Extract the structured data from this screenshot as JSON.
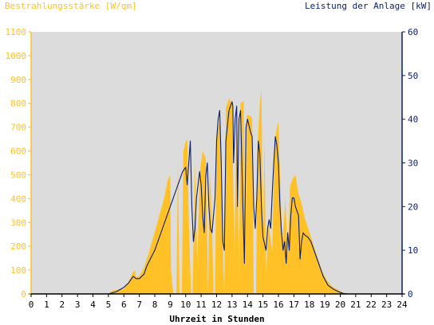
{
  "chart_data": {
    "type": "area",
    "left_axis_label": "Bestrahlungsstärke [W/qm]",
    "right_axis_label": "Leistung der Anlage [kW]",
    "xlabel": "Uhrzeit in Stunden",
    "x_ticks": [
      "0",
      "1",
      "2",
      "3",
      "4",
      "5",
      "6",
      "7",
      "8",
      "9",
      "10",
      "11",
      "12",
      "13",
      "14",
      "15",
      "16",
      "17",
      "18",
      "19",
      "20",
      "21",
      "22",
      "23",
      "24"
    ],
    "y_left_ticks": [
      "0",
      "100",
      "200",
      "300",
      "400",
      "500",
      "600",
      "700",
      "800",
      "900",
      "1000",
      "1100"
    ],
    "y_right_ticks": [
      "0",
      "10",
      "20",
      "30",
      "40",
      "50",
      "60"
    ],
    "x_range": [
      0,
      24
    ],
    "y_left_range": [
      0,
      1100
    ],
    "y_right_range": [
      0,
      60
    ],
    "grid": false,
    "colors": {
      "irradiance": "#ffc125",
      "power": "#0a1f6e",
      "left_axis": "#ffc125",
      "right_axis": "#0a1f6e",
      "plot_background": "#dcdcdc"
    },
    "series": [
      {
        "name": "Bestrahlungsstärke [W/qm]",
        "axis": "left",
        "points": [
          [
            0,
            0
          ],
          [
            5.0,
            0
          ],
          [
            5.3,
            15
          ],
          [
            6.0,
            20
          ],
          [
            6.3,
            50
          ],
          [
            6.5,
            80
          ],
          [
            6.7,
            100
          ],
          [
            6.8,
            70
          ],
          [
            7.0,
            75
          ],
          [
            7.3,
            110
          ],
          [
            7.6,
            170
          ],
          [
            8.0,
            260
          ],
          [
            8.3,
            330
          ],
          [
            8.6,
            400
          ],
          [
            8.85,
            480
          ],
          [
            9.0,
            500
          ],
          [
            9.05,
            100
          ],
          [
            9.2,
            0
          ],
          [
            9.4,
            0
          ],
          [
            9.5,
            560
          ],
          [
            9.6,
            0
          ],
          [
            9.75,
            0
          ],
          [
            9.85,
            600
          ],
          [
            10.0,
            640
          ],
          [
            10.1,
            650
          ],
          [
            10.2,
            300
          ],
          [
            10.35,
            0
          ],
          [
            10.45,
            0
          ],
          [
            10.6,
            550
          ],
          [
            10.75,
            120
          ],
          [
            10.9,
            500
          ],
          [
            11.1,
            600
          ],
          [
            11.3,
            570
          ],
          [
            11.45,
            0
          ],
          [
            11.55,
            520
          ],
          [
            11.7,
            300
          ],
          [
            11.8,
            0
          ],
          [
            11.9,
            0
          ],
          [
            12.0,
            680
          ],
          [
            12.2,
            720
          ],
          [
            12.35,
            300
          ],
          [
            12.5,
            0
          ],
          [
            12.6,
            780
          ],
          [
            12.8,
            820
          ],
          [
            13.0,
            800
          ],
          [
            13.15,
            150
          ],
          [
            13.3,
            780
          ],
          [
            13.45,
            50
          ],
          [
            13.55,
            800
          ],
          [
            13.75,
            810
          ],
          [
            13.85,
            100
          ],
          [
            13.95,
            750
          ],
          [
            14.1,
            750
          ],
          [
            14.3,
            740
          ],
          [
            14.4,
            0
          ],
          [
            14.55,
            0
          ],
          [
            14.65,
            620
          ],
          [
            14.8,
            800
          ],
          [
            14.9,
            860
          ],
          [
            15.0,
            200
          ],
          [
            15.1,
            650
          ],
          [
            15.2,
            60
          ],
          [
            15.35,
            300
          ],
          [
            15.6,
            180
          ],
          [
            15.75,
            620
          ],
          [
            15.9,
            700
          ],
          [
            16.0,
            720
          ],
          [
            16.1,
            500
          ],
          [
            16.25,
            200
          ],
          [
            16.45,
            400
          ],
          [
            16.6,
            150
          ],
          [
            16.75,
            450
          ],
          [
            16.9,
            480
          ],
          [
            17.1,
            500
          ],
          [
            17.3,
            420
          ],
          [
            17.5,
            380
          ],
          [
            17.7,
            320
          ],
          [
            17.9,
            280
          ],
          [
            18.2,
            220
          ],
          [
            18.5,
            160
          ],
          [
            18.8,
            100
          ],
          [
            19.1,
            60
          ],
          [
            19.5,
            30
          ],
          [
            19.9,
            15
          ],
          [
            20.2,
            5
          ],
          [
            20.5,
            0
          ],
          [
            24,
            0
          ]
        ]
      },
      {
        "name": "Leistung der Anlage [kW]",
        "axis": "right",
        "points": [
          [
            0,
            0
          ],
          [
            5.0,
            0
          ],
          [
            5.5,
            0.5
          ],
          [
            6.0,
            1.5
          ],
          [
            6.3,
            2.5
          ],
          [
            6.6,
            4.0
          ],
          [
            6.8,
            3.5
          ],
          [
            7.0,
            3.5
          ],
          [
            7.3,
            4.5
          ],
          [
            7.5,
            6.5
          ],
          [
            8.0,
            10
          ],
          [
            8.5,
            15
          ],
          [
            9.0,
            20
          ],
          [
            9.3,
            23
          ],
          [
            9.6,
            26
          ],
          [
            9.8,
            28
          ],
          [
            10.0,
            29
          ],
          [
            10.1,
            25
          ],
          [
            10.2,
            30
          ],
          [
            10.3,
            35
          ],
          [
            10.4,
            20
          ],
          [
            10.5,
            12
          ],
          [
            10.6,
            15
          ],
          [
            10.7,
            22
          ],
          [
            10.9,
            28
          ],
          [
            11.0,
            25
          ],
          [
            11.1,
            18
          ],
          [
            11.2,
            14
          ],
          [
            11.3,
            27
          ],
          [
            11.4,
            30
          ],
          [
            11.5,
            20
          ],
          [
            11.6,
            15
          ],
          [
            11.7,
            14
          ],
          [
            11.8,
            18
          ],
          [
            11.9,
            22
          ],
          [
            12.0,
            35
          ],
          [
            12.1,
            40
          ],
          [
            12.2,
            42
          ],
          [
            12.3,
            30
          ],
          [
            12.4,
            12
          ],
          [
            12.5,
            10
          ],
          [
            12.6,
            35
          ],
          [
            12.8,
            42
          ],
          [
            13.0,
            44
          ],
          [
            13.05,
            43
          ],
          [
            13.1,
            30
          ],
          [
            13.2,
            40
          ],
          [
            13.3,
            43
          ],
          [
            13.35,
            20
          ],
          [
            13.45,
            40
          ],
          [
            13.55,
            42
          ],
          [
            13.7,
            20
          ],
          [
            13.8,
            7
          ],
          [
            13.9,
            38
          ],
          [
            14.0,
            40
          ],
          [
            14.2,
            37
          ],
          [
            14.3,
            36
          ],
          [
            14.4,
            20
          ],
          [
            14.5,
            15
          ],
          [
            14.6,
            22
          ],
          [
            14.7,
            35
          ],
          [
            14.8,
            32
          ],
          [
            14.9,
            20
          ],
          [
            15.0,
            13
          ],
          [
            15.2,
            10
          ],
          [
            15.3,
            15
          ],
          [
            15.4,
            17
          ],
          [
            15.5,
            15
          ],
          [
            15.6,
            23
          ],
          [
            15.7,
            30
          ],
          [
            15.8,
            36
          ],
          [
            15.9,
            34
          ],
          [
            16.0,
            30
          ],
          [
            16.1,
            20
          ],
          [
            16.2,
            14
          ],
          [
            16.3,
            10
          ],
          [
            16.4,
            12
          ],
          [
            16.5,
            7
          ],
          [
            16.6,
            14
          ],
          [
            16.7,
            10
          ],
          [
            16.8,
            18
          ],
          [
            16.9,
            22
          ],
          [
            17.0,
            22
          ],
          [
            17.1,
            20
          ],
          [
            17.3,
            18
          ],
          [
            17.4,
            8
          ],
          [
            17.5,
            12
          ],
          [
            17.6,
            14
          ],
          [
            17.7,
            13.5
          ],
          [
            17.9,
            13
          ],
          [
            18.1,
            12
          ],
          [
            18.3,
            10
          ],
          [
            18.6,
            7
          ],
          [
            18.9,
            4
          ],
          [
            19.2,
            2
          ],
          [
            19.6,
            1
          ],
          [
            19.9,
            0.5
          ],
          [
            20.2,
            0.1
          ],
          [
            20.5,
            0
          ],
          [
            24,
            0
          ]
        ]
      }
    ]
  }
}
